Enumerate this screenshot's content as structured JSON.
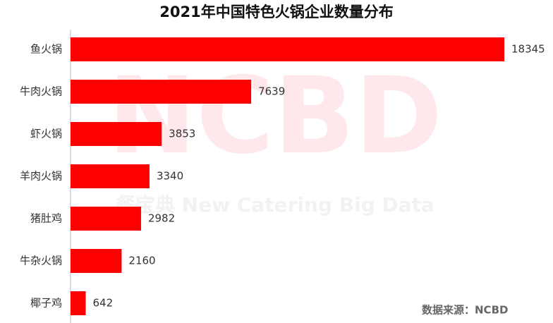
{
  "chart_data": {
    "type": "barh",
    "title": "2021年中国特色火锅企业数量分布",
    "categories": [
      "鱼火锅",
      "牛肉火锅",
      "虾火锅",
      "羊肉火锅",
      "猪肚鸡",
      "牛杂火锅",
      "椰子鸡"
    ],
    "values": [
      18345,
      7639,
      3853,
      3340,
      2982,
      2160,
      642
    ],
    "color": "#ff0000",
    "watermark": "NCBD",
    "watermark_subtitle": "餐宝典 New Catering Big Data",
    "source": "数据来源：NCBD"
  }
}
